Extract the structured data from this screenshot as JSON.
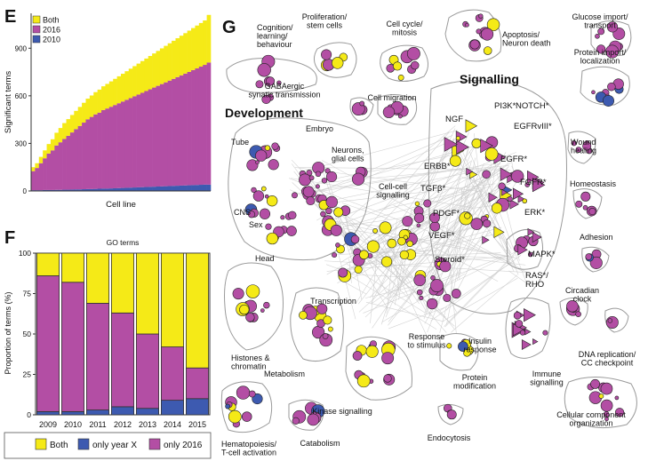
{
  "panels": {
    "E": {
      "letter": "E",
      "ylabel": "Significant terms",
      "xlabel": "Cell line",
      "yticks": [
        "0",
        "300",
        "600",
        "900"
      ],
      "legend": [
        {
          "label": "Both",
          "color": "#f5ea17"
        },
        {
          "label": "2016",
          "color": "#b34ea4"
        },
        {
          "label": "2010",
          "color": "#3d5ab0"
        }
      ]
    },
    "F": {
      "letter": "F",
      "title": "GO terms",
      "ylabel": "Proportion of terms (%)",
      "yticks": [
        "0",
        "25",
        "50",
        "75",
        "100"
      ],
      "legend": [
        {
          "label": "Both",
          "color": "#f5ea17"
        },
        {
          "label": "only year X",
          "color": "#3d5ab0"
        },
        {
          "label": "only 2016",
          "color": "#b34ea4"
        }
      ]
    },
    "G": {
      "letter": "G",
      "big_labels": [
        "Development",
        "Signalling"
      ],
      "cluster_labels": [
        {
          "id": "cognition",
          "text": "Cognition/\nlearning/\nbehaviour"
        },
        {
          "id": "proliferation",
          "text": "Proliferation/\nstem cells"
        },
        {
          "id": "cellcycle",
          "text": "Cell cycle/\nmitosis"
        },
        {
          "id": "apoptosis",
          "text": "Apoptosis/\nNeuron death"
        },
        {
          "id": "glucose",
          "text": "Glucose import/\ntransport"
        },
        {
          "id": "protein-import",
          "text": "Protein import/\nlocalization"
        },
        {
          "id": "gaba",
          "text": "GABAergic\nsynatic transmission"
        },
        {
          "id": "cellmig",
          "text": "Cell migration"
        },
        {
          "id": "embryo",
          "text": "Embryo"
        },
        {
          "id": "tube",
          "text": "Tube"
        },
        {
          "id": "neurons",
          "text": "Neurons,\nglial cells"
        },
        {
          "id": "cns",
          "text": "CNS"
        },
        {
          "id": "sex",
          "text": "Sex"
        },
        {
          "id": "head",
          "text": "Head"
        },
        {
          "id": "cellcell",
          "text": "Cell-cell\nsignalling"
        },
        {
          "id": "pi3k",
          "text": "PI3K*"
        },
        {
          "id": "notch",
          "text": "NOTCH*"
        },
        {
          "id": "ngf",
          "text": "NGF"
        },
        {
          "id": "egfrviii",
          "text": "EGFRvIII*"
        },
        {
          "id": "erbb",
          "text": "ERBB*"
        },
        {
          "id": "egfr",
          "text": "EGFR*"
        },
        {
          "id": "tgfb",
          "text": "TGFβ*"
        },
        {
          "id": "fgfr",
          "text": "FGFR*"
        },
        {
          "id": "pdgf",
          "text": "PDGF*"
        },
        {
          "id": "erk",
          "text": "ERK*"
        },
        {
          "id": "vegf",
          "text": "VEGF*"
        },
        {
          "id": "mapk",
          "text": "MAPK*"
        },
        {
          "id": "steroid",
          "text": "Steroid*"
        },
        {
          "id": "ras",
          "text": "RAS*/\nRHO"
        },
        {
          "id": "wound",
          "text": "Wound\nhealing"
        },
        {
          "id": "homeostasis",
          "text": "Homeostasis"
        },
        {
          "id": "adhesion",
          "text": "Adhesion"
        },
        {
          "id": "circadian",
          "text": "Circadian\nclock"
        },
        {
          "id": "dna",
          "text": "DNA replication/\nCC checkpoint"
        },
        {
          "id": "transcription",
          "text": "Transcription"
        },
        {
          "id": "histones",
          "text": "Histones &\nchromatin"
        },
        {
          "id": "metabolism",
          "text": "Metabolism"
        },
        {
          "id": "response",
          "text": "Response\nto stimulus"
        },
        {
          "id": "insulin",
          "text": "Insulin\nresponse"
        },
        {
          "id": "immune",
          "text": "Immune\nsignalling"
        },
        {
          "id": "proteinmod",
          "text": "Protein\nmodification"
        },
        {
          "id": "kinase",
          "text": "Kinase signalling"
        },
        {
          "id": "endocytosis",
          "text": "Endocytosis"
        },
        {
          "id": "hemato",
          "text": "Hematopoiesis/\nT-cell activation"
        },
        {
          "id": "catabolism",
          "text": "Catabolism"
        },
        {
          "id": "cellcomp",
          "text": "Cellular component\norganization"
        }
      ]
    }
  },
  "chart_data": [
    {
      "panel": "E",
      "type": "bar",
      "stacked": true,
      "xlabel": "Cell line",
      "ylabel": "Significant terms",
      "ylim": [
        0,
        1120
      ],
      "series": [
        {
          "name": "2010",
          "values": [
            5,
            5,
            5,
            6,
            6,
            6,
            7,
            7,
            8,
            8,
            9,
            10,
            10,
            11,
            12,
            12,
            13,
            14,
            15,
            15,
            16,
            17,
            18,
            19,
            20,
            21,
            22,
            23,
            24,
            25,
            26,
            27,
            28,
            29,
            30,
            31,
            32,
            33,
            34,
            35,
            36,
            37,
            38,
            39,
            40,
            40
          ]
        },
        {
          "name": "2016",
          "values": [
            120,
            140,
            170,
            200,
            230,
            250,
            280,
            300,
            320,
            340,
            360,
            380,
            400,
            420,
            440,
            455,
            470,
            480,
            495,
            505,
            515,
            525,
            535,
            545,
            555,
            565,
            575,
            585,
            595,
            605,
            615,
            625,
            635,
            645,
            655,
            665,
            675,
            685,
            695,
            705,
            715,
            725,
            735,
            745,
            755,
            770
          ]
        },
        {
          "name": "Both",
          "values": [
            25,
            30,
            40,
            50,
            60,
            70,
            80,
            90,
            100,
            105,
            110,
            115,
            120,
            125,
            130,
            135,
            140,
            145,
            150,
            155,
            160,
            165,
            170,
            175,
            180,
            185,
            190,
            195,
            200,
            205,
            210,
            215,
            220,
            225,
            230,
            235,
            240,
            245,
            250,
            255,
            260,
            265,
            270,
            275,
            280,
            300
          ]
        }
      ]
    },
    {
      "panel": "F",
      "type": "bar",
      "stacked": true,
      "title": "GO terms",
      "ylabel": "Proportion of terms (%)",
      "ylim": [
        0,
        100
      ],
      "categories": [
        "2009",
        "2010",
        "2011",
        "2012",
        "2013",
        "2014",
        "2015"
      ],
      "series": [
        {
          "name": "only year X",
          "values": [
            2,
            2,
            3,
            5,
            4,
            9,
            10
          ]
        },
        {
          "name": "only 2016",
          "values": [
            84,
            80,
            66,
            58,
            46,
            33,
            19
          ]
        },
        {
          "name": "Both",
          "values": [
            14,
            18,
            31,
            37,
            50,
            58,
            71
          ]
        }
      ]
    }
  ]
}
